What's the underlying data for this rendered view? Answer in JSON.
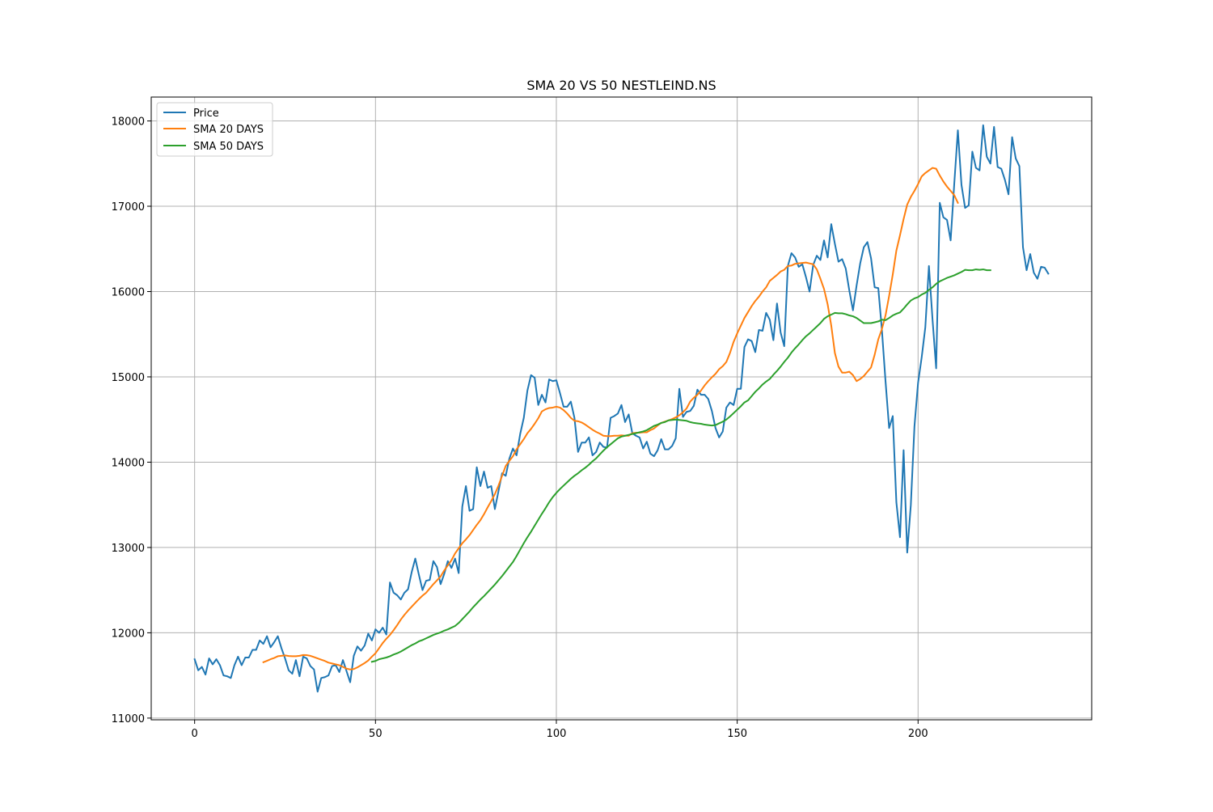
{
  "chart_data": {
    "type": "line",
    "title": "SMA 20 VS 50 NESTLEIND.NS",
    "xlabel": "",
    "ylabel": "",
    "xlim": [
      -12,
      248
    ],
    "ylim": [
      10980,
      18280
    ],
    "x_ticks": [
      0,
      50,
      100,
      150,
      200
    ],
    "y_ticks": [
      11000,
      12000,
      13000,
      14000,
      15000,
      16000,
      17000,
      18000
    ],
    "grid": true,
    "legend": "top-left",
    "series": [
      {
        "name": "Price",
        "color": "#1f77b4",
        "x_start": 0,
        "values": [
          11690,
          11560,
          11600,
          11510,
          11700,
          11630,
          11690,
          11620,
          11500,
          11490,
          11470,
          11620,
          11720,
          11620,
          11710,
          11710,
          11800,
          11800,
          11910,
          11870,
          11960,
          11830,
          11890,
          11960,
          11820,
          11700,
          11560,
          11520,
          11680,
          11490,
          11720,
          11700,
          11610,
          11570,
          11310,
          11470,
          11480,
          11500,
          11610,
          11620,
          11540,
          11680,
          11550,
          11420,
          11730,
          11840,
          11790,
          11850,
          11990,
          11910,
          12040,
          12000,
          12060,
          11980,
          12590,
          12470,
          12440,
          12390,
          12470,
          12510,
          12710,
          12870,
          12680,
          12500,
          12610,
          12620,
          12840,
          12770,
          12570,
          12690,
          12840,
          12760,
          12870,
          12700,
          13480,
          13720,
          13430,
          13450,
          13940,
          13720,
          13890,
          13700,
          13720,
          13450,
          13660,
          13870,
          13840,
          14040,
          14160,
          14080,
          14330,
          14520,
          14840,
          15020,
          14990,
          14670,
          14790,
          14700,
          14970,
          14950,
          14960,
          14810,
          14650,
          14650,
          14710,
          14520,
          14120,
          14230,
          14230,
          14290,
          14080,
          14120,
          14230,
          14180,
          14170,
          14520,
          14540,
          14570,
          14670,
          14470,
          14560,
          14340,
          14310,
          14290,
          14160,
          14240,
          14100,
          14070,
          14140,
          14270,
          14150,
          14150,
          14190,
          14280,
          14860,
          14530,
          14590,
          14600,
          14660,
          14850,
          14790,
          14790,
          14740,
          14600,
          14400,
          14290,
          14360,
          14640,
          14700,
          14670,
          14860,
          14860,
          15350,
          15440,
          15420,
          15290,
          15550,
          15540,
          15750,
          15670,
          15430,
          15860,
          15520,
          15360,
          16300,
          16450,
          16400,
          16290,
          16320,
          16170,
          16000,
          16310,
          16420,
          16370,
          16600,
          16400,
          16790,
          16560,
          16350,
          16380,
          16270,
          16010,
          15780,
          16070,
          16330,
          16520,
          16580,
          16390,
          16050,
          16040,
          15550,
          14950,
          14400,
          14540,
          13530,
          13120,
          14140,
          12940,
          13500,
          14420,
          14930,
          15230,
          15580,
          16300,
          15670,
          15100,
          17040,
          16870,
          16840,
          16600,
          17260,
          17890,
          17250,
          16980,
          17010,
          17640,
          17450,
          17420,
          17950,
          17580,
          17500,
          17930,
          17460,
          17440,
          17310,
          17140,
          17810,
          17560,
          17470,
          16520,
          16250,
          16440,
          16220,
          16150,
          16290,
          16280,
          16210
        ]
      },
      {
        "name": "SMA 20 DAYS",
        "color": "#ff7f0e",
        "x_start": 19,
        "values": [
          11655,
          11672,
          11690,
          11705,
          11725,
          11730,
          11735,
          11728,
          11725,
          11725,
          11730,
          11740,
          11738,
          11730,
          11715,
          11700,
          11685,
          11670,
          11650,
          11640,
          11630,
          11620,
          11600,
          11580,
          11570,
          11575,
          11595,
          11620,
          11645,
          11675,
          11720,
          11760,
          11820,
          11880,
          11930,
          11975,
          12030,
          12090,
          12155,
          12210,
          12260,
          12305,
          12350,
          12395,
          12435,
          12470,
          12520,
          12570,
          12615,
          12660,
          12730,
          12790,
          12850,
          12930,
          12990,
          13050,
          13095,
          13145,
          13205,
          13265,
          13320,
          13390,
          13470,
          13545,
          13625,
          13725,
          13840,
          13955,
          14015,
          14070,
          14150,
          14210,
          14270,
          14340,
          14390,
          14450,
          14515,
          14595,
          14620,
          14635,
          14640,
          14650,
          14640,
          14610,
          14570,
          14520,
          14485,
          14480,
          14465,
          14440,
          14410,
          14380,
          14355,
          14335,
          14310,
          14305,
          14305,
          14310,
          14310,
          14315,
          14310,
          14310,
          14340,
          14345,
          14345,
          14350,
          14350,
          14375,
          14395,
          14430,
          14460,
          14475,
          14490,
          14505,
          14525,
          14550,
          14585,
          14630,
          14710,
          14755,
          14790,
          14840,
          14900,
          14950,
          14995,
          15035,
          15090,
          15125,
          15175,
          15280,
          15410,
          15510,
          15600,
          15690,
          15760,
          15830,
          15890,
          15940,
          16000,
          16050,
          16125,
          16160,
          16195,
          16235,
          16255,
          16300,
          16305,
          16325,
          16330,
          16335,
          16340,
          16330,
          16320,
          16260,
          16150,
          16030,
          15850,
          15600,
          15280,
          15120,
          15050,
          15050,
          15060,
          15020,
          14950,
          14975,
          15010,
          15060,
          15110,
          15260,
          15440,
          15560,
          15720,
          15950,
          16200,
          16480,
          16660,
          16850,
          17020,
          17110,
          17180,
          17260,
          17350,
          17390,
          17420,
          17450,
          17440,
          17360,
          17290,
          17230,
          17180,
          17130,
          17040
        ]
      },
      {
        "name": "SMA 50 DAYS",
        "color": "#2ca02c",
        "x_start": 49,
        "values": [
          11660,
          11670,
          11690,
          11700,
          11710,
          11725,
          11745,
          11760,
          11780,
          11805,
          11830,
          11855,
          11875,
          11900,
          11915,
          11935,
          11955,
          11975,
          11990,
          12005,
          12025,
          12040,
          12060,
          12080,
          12115,
          12160,
          12205,
          12250,
          12300,
          12345,
          12390,
          12430,
          12475,
          12520,
          12565,
          12615,
          12665,
          12720,
          12775,
          12830,
          12900,
          12975,
          13050,
          13120,
          13185,
          13255,
          13325,
          13395,
          13460,
          13530,
          13590,
          13640,
          13685,
          13725,
          13765,
          13805,
          13840,
          13870,
          13905,
          13935,
          13970,
          14010,
          14045,
          14090,
          14135,
          14175,
          14210,
          14245,
          14280,
          14300,
          14310,
          14320,
          14330,
          14340,
          14350,
          14360,
          14375,
          14400,
          14425,
          14440,
          14460,
          14470,
          14490,
          14495,
          14500,
          14495,
          14490,
          14485,
          14470,
          14460,
          14455,
          14450,
          14440,
          14435,
          14430,
          14435,
          14455,
          14475,
          14500,
          14535,
          14575,
          14615,
          14655,
          14700,
          14725,
          14775,
          14825,
          14865,
          14910,
          14945,
          14975,
          15025,
          15070,
          15120,
          15175,
          15225,
          15285,
          15335,
          15380,
          15430,
          15475,
          15510,
          15550,
          15590,
          15630,
          15680,
          15710,
          15730,
          15750,
          15745,
          15745,
          15735,
          15720,
          15710,
          15690,
          15660,
          15630,
          15630,
          15630,
          15640,
          15650,
          15670,
          15665,
          15690,
          15720,
          15740,
          15755,
          15800,
          15850,
          15895,
          15920,
          15935,
          15965,
          15985,
          16020,
          16050,
          16090,
          16120,
          16140,
          16160,
          16175,
          16190,
          16210,
          16230,
          16255,
          16250,
          16250,
          16260,
          16255,
          16260,
          16250,
          16250
        ]
      }
    ]
  }
}
